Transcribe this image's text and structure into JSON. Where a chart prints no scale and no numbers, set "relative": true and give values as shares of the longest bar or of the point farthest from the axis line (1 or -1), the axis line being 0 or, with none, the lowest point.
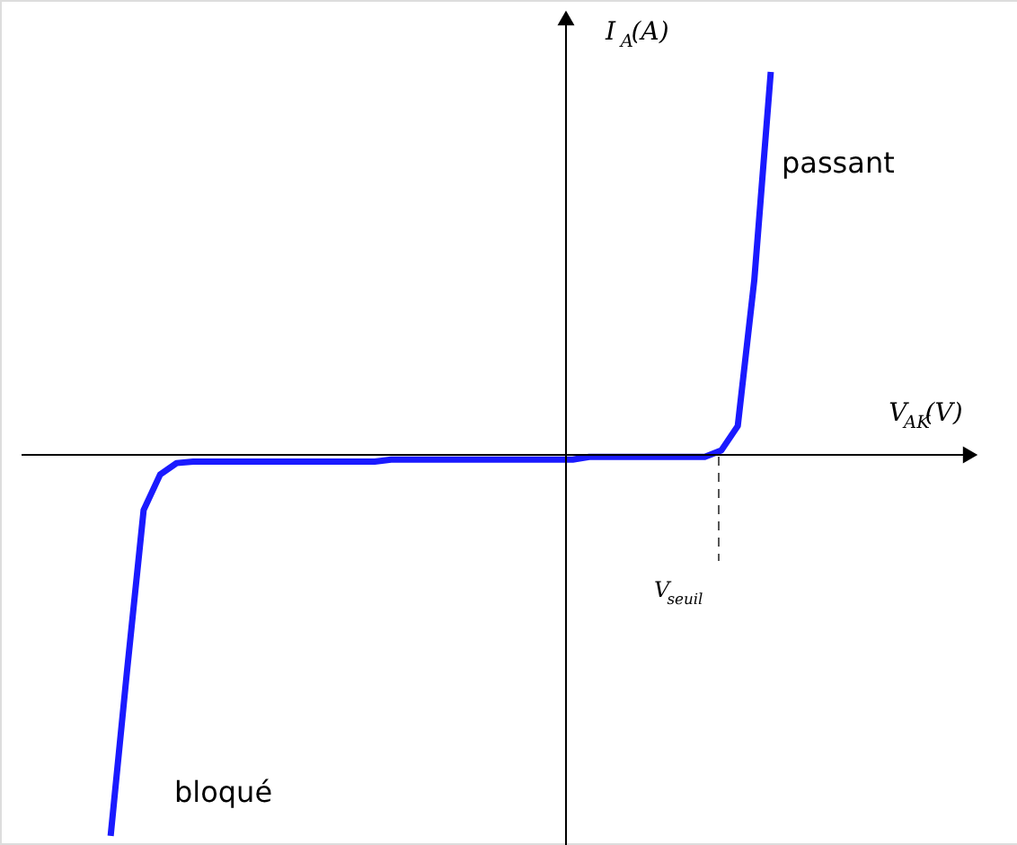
{
  "chart_data": {
    "type": "line",
    "relative": true,
    "xlabel": "V$_{AK}$(V)",
    "ylabel": "I$_{A}$(A)",
    "tick_labels": false,
    "marker": "none",
    "line_style": "solid",
    "categories": [
      null,
      null,
      null,
      null,
      null,
      null,
      null,
      null,
      null,
      null,
      null,
      null,
      null,
      null,
      null,
      null,
      null,
      null,
      null,
      null,
      null,
      null,
      null,
      null,
      null,
      null,
      null,
      null,
      null,
      null,
      null,
      null,
      null,
      null,
      null,
      null,
      null,
      null,
      null,
      null,
      null
    ],
    "series": [
      {
        "color": "#1a1aff",
        "values": [
          -1,
          -0.565,
          -0.147,
          -0.054,
          -0.024,
          -0.02,
          -0.02,
          -0.02,
          -0.02,
          -0.02,
          -0.02,
          -0.02,
          -0.02,
          -0.02,
          -0.02,
          -0.02,
          -0.02,
          -0.015,
          -0.015,
          -0.015,
          -0.015,
          -0.015,
          -0.015,
          -0.015,
          -0.015,
          -0.015,
          -0.015,
          -0.015,
          -0.015,
          -0.008,
          -0.008,
          -0.008,
          -0.008,
          -0.008,
          -0.008,
          -0.008,
          -0.008,
          0.009,
          0.073,
          0.454,
          1
        ]
      }
    ],
    "annotations": [
      "passant",
      "V$_{seuil}$",
      "bloqué"
    ]
  }
}
